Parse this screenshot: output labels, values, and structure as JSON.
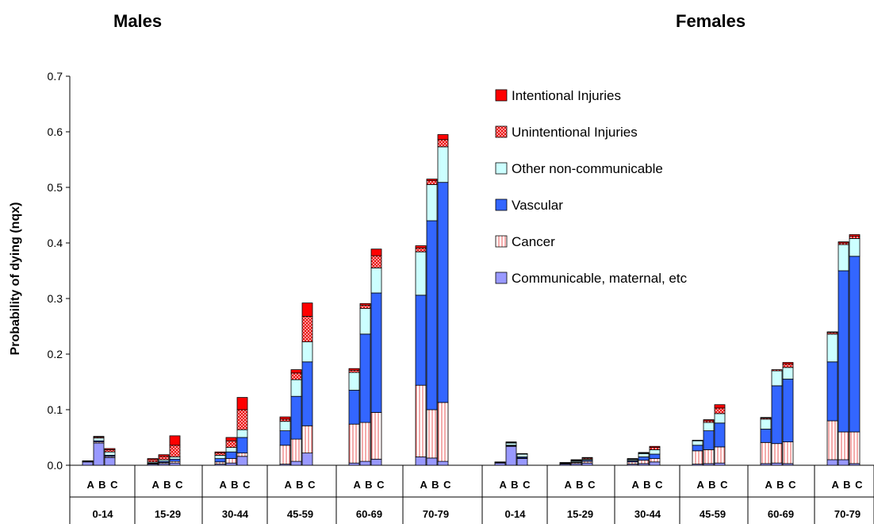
{
  "chart_data": {
    "type": "bar",
    "stacked": true,
    "panels": [
      "Males",
      "Females"
    ],
    "ylabel": "Probability of dying (nqx)",
    "ylim": [
      0,
      0.7
    ],
    "yticks": [
      "0.0",
      "0.1",
      "0.2",
      "0.3",
      "0.4",
      "0.5",
      "0.6",
      "0.7"
    ],
    "bar_labels": [
      "A",
      "B",
      "C"
    ],
    "age_groups": [
      "0-14",
      "15-29",
      "30-44",
      "45-59",
      "60-69",
      "70-79",
      "0-14",
      "15-29",
      "30-44",
      "45-59",
      "60-69",
      "70-79"
    ],
    "series": [
      {
        "name": "Communicable, maternal, etc",
        "color": "#9999ff",
        "pattern": "solid"
      },
      {
        "name": "Cancer",
        "color": "#ffffff",
        "pattern": "vertical-red-lines"
      },
      {
        "name": "Vascular",
        "color": "#3366ff",
        "pattern": "solid"
      },
      {
        "name": "Other non-communicable",
        "color": "#ccffff",
        "pattern": "solid"
      },
      {
        "name": "Unintentional Injuries",
        "color": "#ff6666",
        "pattern": "red-checker"
      },
      {
        "name": "Intentional Injuries",
        "color": "#ff0000",
        "pattern": "solid"
      }
    ],
    "bars": [
      {
        "panel": "Males",
        "group": "0-14",
        "bar": "A",
        "values": [
          0.006,
          0.0,
          0.0,
          0.001,
          0.0005,
          0.0005
        ]
      },
      {
        "panel": "Males",
        "group": "0-14",
        "bar": "B",
        "values": [
          0.04,
          0.002,
          0.002,
          0.005,
          0.002,
          0.001
        ]
      },
      {
        "panel": "Males",
        "group": "0-14",
        "bar": "C",
        "values": [
          0.014,
          0.002,
          0.002,
          0.006,
          0.004,
          0.002
        ]
      },
      {
        "panel": "Males",
        "group": "15-29",
        "bar": "A",
        "values": [
          0.002,
          0.001,
          0.001,
          0.002,
          0.004,
          0.002
        ]
      },
      {
        "panel": "Males",
        "group": "15-29",
        "bar": "B",
        "values": [
          0.003,
          0.002,
          0.002,
          0.003,
          0.006,
          0.003
        ]
      },
      {
        "panel": "Males",
        "group": "15-29",
        "bar": "C",
        "values": [
          0.004,
          0.003,
          0.004,
          0.004,
          0.021,
          0.017
        ]
      },
      {
        "panel": "Males",
        "group": "30-44",
        "bar": "A",
        "values": [
          0.002,
          0.004,
          0.006,
          0.006,
          0.004,
          0.002
        ]
      },
      {
        "panel": "Males",
        "group": "30-44",
        "bar": "B",
        "values": [
          0.004,
          0.008,
          0.012,
          0.008,
          0.012,
          0.006
        ]
      },
      {
        "panel": "Males",
        "group": "30-44",
        "bar": "C",
        "values": [
          0.016,
          0.006,
          0.028,
          0.014,
          0.036,
          0.022
        ]
      },
      {
        "panel": "Males",
        "group": "45-59",
        "bar": "A",
        "values": [
          0.002,
          0.034,
          0.026,
          0.017,
          0.004,
          0.004
        ]
      },
      {
        "panel": "Males",
        "group": "45-59",
        "bar": "B",
        "values": [
          0.007,
          0.04,
          0.077,
          0.03,
          0.012,
          0.006
        ]
      },
      {
        "panel": "Males",
        "group": "45-59",
        "bar": "C",
        "values": [
          0.022,
          0.049,
          0.115,
          0.036,
          0.046,
          0.024
        ]
      },
      {
        "panel": "Males",
        "group": "60-69",
        "bar": "A",
        "values": [
          0.004,
          0.07,
          0.061,
          0.032,
          0.004,
          0.003
        ]
      },
      {
        "panel": "Males",
        "group": "60-69",
        "bar": "B",
        "values": [
          0.007,
          0.07,
          0.159,
          0.046,
          0.006,
          0.003
        ]
      },
      {
        "panel": "Males",
        "group": "60-69",
        "bar": "C",
        "values": [
          0.011,
          0.084,
          0.215,
          0.045,
          0.022,
          0.012
        ]
      },
      {
        "panel": "Males",
        "group": "70-79",
        "bar": "A",
        "values": [
          0.015,
          0.129,
          0.162,
          0.078,
          0.007,
          0.004
        ]
      },
      {
        "panel": "Males",
        "group": "70-79",
        "bar": "B",
        "values": [
          0.013,
          0.087,
          0.34,
          0.065,
          0.007,
          0.003
        ]
      },
      {
        "panel": "Males",
        "group": "70-79",
        "bar": "C",
        "values": [
          0.007,
          0.106,
          0.396,
          0.064,
          0.013,
          0.009
        ]
      },
      {
        "panel": "Females",
        "group": "0-14",
        "bar": "A",
        "values": [
          0.004,
          0.0,
          0.0,
          0.001,
          0.0005,
          0.0005
        ]
      },
      {
        "panel": "Females",
        "group": "0-14",
        "bar": "B",
        "values": [
          0.034,
          0.001,
          0.001,
          0.004,
          0.001,
          0.001
        ]
      },
      {
        "panel": "Females",
        "group": "0-14",
        "bar": "C",
        "values": [
          0.012,
          0.001,
          0.002,
          0.005,
          0.001,
          0.0
        ]
      },
      {
        "panel": "Females",
        "group": "15-29",
        "bar": "A",
        "values": [
          0.002,
          0.001,
          0.0,
          0.001,
          0.001,
          0.0
        ]
      },
      {
        "panel": "Females",
        "group": "15-29",
        "bar": "B",
        "values": [
          0.003,
          0.002,
          0.001,
          0.002,
          0.001,
          0.001
        ]
      },
      {
        "panel": "Females",
        "group": "15-29",
        "bar": "C",
        "values": [
          0.004,
          0.003,
          0.002,
          0.002,
          0.002,
          0.001
        ]
      },
      {
        "panel": "Females",
        "group": "30-44",
        "bar": "A",
        "values": [
          0.002,
          0.004,
          0.002,
          0.002,
          0.001,
          0.001
        ]
      },
      {
        "panel": "Females",
        "group": "30-44",
        "bar": "B",
        "values": [
          0.003,
          0.006,
          0.006,
          0.006,
          0.001,
          0.001
        ]
      },
      {
        "panel": "Females",
        "group": "30-44",
        "bar": "C",
        "values": [
          0.006,
          0.006,
          0.008,
          0.008,
          0.004,
          0.002
        ]
      },
      {
        "panel": "Females",
        "group": "45-59",
        "bar": "A",
        "values": [
          0.002,
          0.024,
          0.01,
          0.008,
          0.001,
          0.0
        ]
      },
      {
        "panel": "Females",
        "group": "45-59",
        "bar": "B",
        "values": [
          0.003,
          0.025,
          0.034,
          0.015,
          0.003,
          0.002
        ]
      },
      {
        "panel": "Females",
        "group": "45-59",
        "bar": "C",
        "values": [
          0.004,
          0.029,
          0.043,
          0.017,
          0.01,
          0.006
        ]
      },
      {
        "panel": "Females",
        "group": "60-69",
        "bar": "A",
        "values": [
          0.003,
          0.038,
          0.024,
          0.018,
          0.002,
          0.001
        ]
      },
      {
        "panel": "Females",
        "group": "60-69",
        "bar": "B",
        "values": [
          0.004,
          0.035,
          0.104,
          0.027,
          0.002,
          0.0
        ]
      },
      {
        "panel": "Females",
        "group": "60-69",
        "bar": "C",
        "values": [
          0.003,
          0.039,
          0.113,
          0.021,
          0.006,
          0.003
        ]
      },
      {
        "panel": "Females",
        "group": "70-79",
        "bar": "A",
        "values": [
          0.01,
          0.07,
          0.106,
          0.05,
          0.003,
          0.001
        ]
      },
      {
        "panel": "Females",
        "group": "70-79",
        "bar": "B",
        "values": [
          0.01,
          0.05,
          0.29,
          0.047,
          0.003,
          0.002
        ]
      },
      {
        "panel": "Females",
        "group": "70-79",
        "bar": "C",
        "values": [
          0.003,
          0.057,
          0.316,
          0.032,
          0.004,
          0.003
        ]
      }
    ],
    "legend": {
      "placement": "top-right",
      "order": [
        "Intentional Injuries",
        "Unintentional Injuries",
        "Other non-communicable",
        "Vascular",
        "Cancer",
        "Communicable, maternal, etc"
      ]
    },
    "grid": false
  }
}
